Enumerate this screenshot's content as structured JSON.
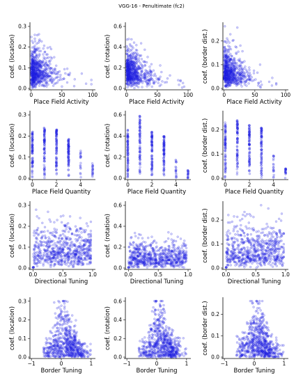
{
  "figure": {
    "suptitle": "VGG-16 - Penultimate (fc2)"
  },
  "rows": [
    "place-field-activity",
    "place-field-quantity",
    "directional-tuning",
    "border-tuning"
  ],
  "cols": [
    "location",
    "rotation",
    "border-dist"
  ],
  "chart_data": [
    {
      "type": "scatter",
      "row": 0,
      "col": 0,
      "xlabel": "Place Field Activity",
      "ylabel": "coef. (location)",
      "xlim": [
        -2,
        100
      ],
      "ylim": [
        0,
        0.31
      ],
      "xticks": [
        0,
        50,
        100
      ],
      "yticks": [
        0.0,
        0.1,
        0.2,
        0.3
      ],
      "xtick_labels": [
        "0",
        "50",
        "100"
      ],
      "ytick_labels": [
        "0.0",
        "0.1",
        "0.2",
        "0.3"
      ],
      "points_shown": "approx. 2000 points, dense near x=0-20, y=0-0.15",
      "sample": [
        [
          2,
          0.05
        ],
        [
          5,
          0.12
        ],
        [
          10,
          0.08
        ],
        [
          15,
          0.18
        ],
        [
          20,
          0.06
        ],
        [
          30,
          0.1
        ],
        [
          45,
          0.05
        ],
        [
          60,
          0.03
        ],
        [
          90,
          0.02
        ]
      ]
    },
    {
      "type": "scatter",
      "row": 0,
      "col": 1,
      "xlabel": "Place Field Activity",
      "ylabel": "coef. (rotation)",
      "xlim": [
        -2,
        100
      ],
      "ylim": [
        0,
        0.62
      ],
      "xticks": [
        0,
        50,
        100
      ],
      "yticks": [
        0.0,
        0.2,
        0.4,
        0.6
      ],
      "xtick_labels": [
        "0",
        "50",
        "100"
      ],
      "ytick_labels": [
        "0.0",
        "0.2",
        "0.4",
        "0.6"
      ],
      "sample": [
        [
          2,
          0.05
        ],
        [
          8,
          0.25
        ],
        [
          15,
          0.15
        ],
        [
          25,
          0.1
        ],
        [
          40,
          0.06
        ],
        [
          70,
          0.02
        ],
        [
          95,
          0.01
        ]
      ]
    },
    {
      "type": "scatter",
      "row": 0,
      "col": 2,
      "xlabel": "Place Field Activity",
      "ylabel": "coef. (border dist.)",
      "xlim": [
        -2,
        100
      ],
      "ylim": [
        0,
        0.27
      ],
      "xticks": [
        0,
        50,
        100
      ],
      "yticks": [
        0.0,
        0.1,
        0.2
      ],
      "xtick_labels": [
        "0",
        "50",
        "100"
      ],
      "ytick_labels": [
        "0.0",
        "0.1",
        "0.2"
      ],
      "sample": [
        [
          2,
          0.04
        ],
        [
          8,
          0.12
        ],
        [
          15,
          0.08
        ],
        [
          30,
          0.05
        ],
        [
          60,
          0.02
        ],
        [
          95,
          0.01
        ]
      ]
    },
    {
      "type": "scatter",
      "row": 1,
      "col": 0,
      "xlabel": "Place Field Quantity",
      "ylabel": "coef. (location)",
      "xlim": [
        -0.2,
        5
      ],
      "ylim": [
        0,
        0.31
      ],
      "xticks": [
        0,
        2,
        4
      ],
      "yticks": [
        0.0,
        0.1,
        0.2,
        0.3
      ],
      "xtick_labels": [
        "0",
        "2",
        "4"
      ],
      "ytick_labels": [
        "0.0",
        "0.1",
        "0.2",
        "0.3"
      ],
      "stack_tops": [
        {
          "x": 0,
          "y": 0.22
        },
        {
          "x": 1,
          "y": 0.24
        },
        {
          "x": 2,
          "y": 0.23
        },
        {
          "x": 3,
          "y": 0.19
        },
        {
          "x": 4,
          "y": 0.13
        },
        {
          "x": 5,
          "y": 0.07
        }
      ]
    },
    {
      "type": "scatter",
      "row": 1,
      "col": 1,
      "xlabel": "Place Field Quantity",
      "ylabel": "coef. (rotation)",
      "xlim": [
        -0.2,
        5
      ],
      "ylim": [
        0,
        0.62
      ],
      "xticks": [
        0,
        2,
        4
      ],
      "yticks": [
        0.0,
        0.2,
        0.4,
        0.6
      ],
      "xtick_labels": [
        "0",
        "2",
        "4"
      ],
      "ytick_labels": [
        "0.0",
        "0.2",
        "0.4",
        "0.6"
      ],
      "stack_tops": [
        {
          "x": 0,
          "y": 0.46
        },
        {
          "x": 1,
          "y": 0.59
        },
        {
          "x": 2,
          "y": 0.44
        },
        {
          "x": 3,
          "y": 0.4
        },
        {
          "x": 4,
          "y": 0.2
        },
        {
          "x": 5,
          "y": 0.08
        }
      ]
    },
    {
      "type": "scatter",
      "row": 1,
      "col": 2,
      "xlabel": "Place Field Quantity",
      "ylabel": "coef. (border dist.)",
      "xlim": [
        -0.2,
        5
      ],
      "ylim": [
        0,
        0.27
      ],
      "xticks": [
        0,
        2,
        4
      ],
      "yticks": [
        0.0,
        0.1,
        0.2
      ],
      "xtick_labels": [
        "0",
        "2",
        "4"
      ],
      "ytick_labels": [
        "0.0",
        "0.1",
        "0.2"
      ],
      "stack_tops": [
        {
          "x": 0,
          "y": 0.23
        },
        {
          "x": 1,
          "y": 0.24
        },
        {
          "x": 2,
          "y": 0.22
        },
        {
          "x": 3,
          "y": 0.21
        },
        {
          "x": 4,
          "y": 0.1
        },
        {
          "x": 5,
          "y": 0.04
        }
      ]
    },
    {
      "type": "scatter",
      "row": 2,
      "col": 0,
      "xlabel": "Directional Tuning",
      "ylabel": "coef. (location)",
      "xlim": [
        -0.05,
        1.0
      ],
      "ylim": [
        0,
        0.31
      ],
      "xticks": [
        0.0,
        0.5,
        1.0
      ],
      "yticks": [
        0.0,
        0.1,
        0.2,
        0.3
      ],
      "xtick_labels": [
        "0.0",
        "0.5",
        "1.0"
      ],
      "ytick_labels": [
        "0.0",
        "0.1",
        "0.2",
        "0.3"
      ],
      "sample": [
        [
          0.1,
          0.1
        ],
        [
          0.3,
          0.15
        ],
        [
          0.5,
          0.2
        ],
        [
          0.7,
          0.08
        ],
        [
          0.9,
          0.05
        ],
        [
          0,
          0.0
        ]
      ]
    },
    {
      "type": "scatter",
      "row": 2,
      "col": 1,
      "xlabel": "Directional Tuning",
      "ylabel": "coef. (rotation)",
      "xlim": [
        -0.05,
        1.0
      ],
      "ylim": [
        0,
        0.62
      ],
      "xticks": [
        0.0,
        0.5,
        1.0
      ],
      "yticks": [
        0.0,
        0.2,
        0.4,
        0.6
      ],
      "xtick_labels": [
        "0.0",
        "0.5",
        "1.0"
      ],
      "ytick_labels": [
        "0.0",
        "0.2",
        "0.4",
        "0.6"
      ],
      "sample": [
        [
          0.1,
          0.1
        ],
        [
          0.3,
          0.2
        ],
        [
          0.5,
          0.35
        ],
        [
          0.7,
          0.1
        ],
        [
          0.9,
          0.05
        ],
        [
          0,
          0.0
        ]
      ]
    },
    {
      "type": "scatter",
      "row": 2,
      "col": 2,
      "xlabel": "Directional Tuning",
      "ylabel": "coef. (border dist.)",
      "xlim": [
        -0.05,
        1.0
      ],
      "ylim": [
        0,
        0.27
      ],
      "xticks": [
        0.0,
        0.5,
        1.0
      ],
      "yticks": [
        0.0,
        0.1,
        0.2
      ],
      "xtick_labels": [
        "0.0",
        "0.5",
        "1.0"
      ],
      "ytick_labels": [
        "0.0",
        "0.1",
        "0.2"
      ],
      "sample": [
        [
          0.1,
          0.08
        ],
        [
          0.3,
          0.12
        ],
        [
          0.5,
          0.15
        ],
        [
          0.7,
          0.06
        ],
        [
          0.9,
          0.04
        ],
        [
          0,
          0.0
        ]
      ]
    },
    {
      "type": "scatter",
      "row": 3,
      "col": 0,
      "xlabel": "Border Tuning",
      "ylabel": "coef. (location)",
      "xlim": [
        -1.05,
        1.05
      ],
      "ylim": [
        0,
        0.31
      ],
      "xticks": [
        -1,
        0,
        1
      ],
      "yticks": [
        0.0,
        0.1,
        0.2,
        0.3
      ],
      "xtick_labels": [
        "−1",
        "0",
        "1"
      ],
      "ytick_labels": [
        "0.0",
        "0.1",
        "0.2",
        "0.3"
      ],
      "sample": [
        [
          -0.2,
          0.05
        ],
        [
          0,
          0.2
        ],
        [
          0.1,
          0.28
        ],
        [
          0.3,
          0.1
        ],
        [
          0.6,
          0.05
        ],
        [
          0.9,
          0.02
        ]
      ]
    },
    {
      "type": "scatter",
      "row": 3,
      "col": 1,
      "xlabel": "Border Tuning",
      "ylabel": "coef. (rotation)",
      "xlim": [
        -1.05,
        1.05
      ],
      "ylim": [
        0,
        0.62
      ],
      "xticks": [
        -1,
        0,
        1
      ],
      "yticks": [
        0.0,
        0.2,
        0.4,
        0.6
      ],
      "xtick_labels": [
        "−1",
        "0",
        "1"
      ],
      "ytick_labels": [
        "0.0",
        "0.2",
        "0.4",
        "0.6"
      ],
      "sample": [
        [
          -0.2,
          0.05
        ],
        [
          0,
          0.3
        ],
        [
          0.1,
          0.5
        ],
        [
          0.3,
          0.15
        ],
        [
          0.6,
          0.08
        ],
        [
          0.9,
          0.03
        ]
      ]
    },
    {
      "type": "scatter",
      "row": 3,
      "col": 2,
      "xlabel": "Border Tuning",
      "ylabel": "coef. (border dist.)",
      "xlim": [
        -1.05,
        1.05
      ],
      "ylim": [
        0,
        0.27
      ],
      "xticks": [
        -1,
        0,
        1
      ],
      "yticks": [
        0.0,
        0.1,
        0.2
      ],
      "xtick_labels": [
        "−1",
        "0",
        "1"
      ],
      "ytick_labels": [
        "0.0",
        "0.1",
        "0.2"
      ],
      "sample": [
        [
          -0.2,
          0.04
        ],
        [
          0,
          0.18
        ],
        [
          0.1,
          0.25
        ],
        [
          0.3,
          0.08
        ],
        [
          0.6,
          0.05
        ],
        [
          0.9,
          0.02
        ]
      ]
    }
  ],
  "colors": {
    "point_fill": "#2828eb",
    "axis": "#000000"
  }
}
